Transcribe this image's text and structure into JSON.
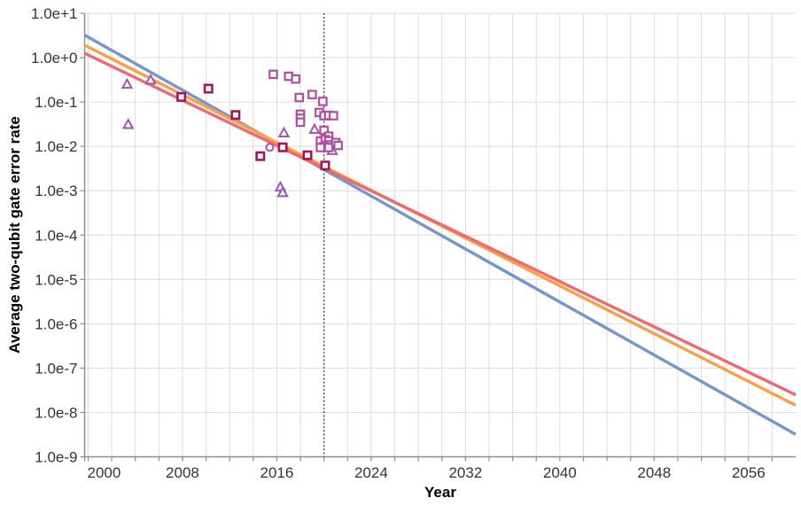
{
  "figure": {
    "xlabel": "Year",
    "ylabel": "Average two-qubit gate error rate"
  },
  "chart_data": {
    "type": "scatter",
    "title": "",
    "xlabel": "Year",
    "ylabel": "Average two-qubit gate error rate",
    "xlim": [
      1999.7,
      2060.0
    ],
    "ylim_exp": [
      -9,
      1
    ],
    "y_scale": "log10",
    "grid": true,
    "legend": "none",
    "x_minor_tick_step_years": 2,
    "x_ticks": [
      {
        "label": "2000",
        "year": 2000
      },
      {
        "label": "2008",
        "year": 2008
      },
      {
        "label": "2016",
        "year": 2016
      },
      {
        "label": "2024",
        "year": 2024
      },
      {
        "label": "2032",
        "year": 2032
      },
      {
        "label": "2040",
        "year": 2040
      },
      {
        "label": "2048",
        "year": 2048
      },
      {
        "label": "2056",
        "year": 2056
      }
    ],
    "y_ticks": [
      {
        "label": "1.0e+1",
        "exp": 1
      },
      {
        "label": "1.0e+0",
        "exp": 0
      },
      {
        "label": "1.0e-1",
        "exp": -1
      },
      {
        "label": "1.0e-2",
        "exp": -2
      },
      {
        "label": "1.0e-3",
        "exp": -3
      },
      {
        "label": "1.0e-4",
        "exp": -4
      },
      {
        "label": "1.0e-5",
        "exp": -5
      },
      {
        "label": "1.0e-6",
        "exp": -6
      },
      {
        "label": "1.0e-7",
        "exp": -7
      },
      {
        "label": "1.0e-8",
        "exp": -8
      },
      {
        "label": "1.0e-9",
        "exp": -9
      }
    ],
    "reference_line": {
      "year": 2020,
      "style": "dotted",
      "color": "#333333"
    },
    "colors": {
      "grid": "#dcdcdc",
      "axis": "#8c8c8c",
      "tick_text": "#333333",
      "background": "#ffffff"
    },
    "trend_lines": [
      {
        "name": "blue",
        "color": "#7596c8",
        "points": [
          {
            "year": 2000,
            "value": 2.9
          },
          {
            "year": 2060,
            "value": 3.2e-09
          }
        ]
      },
      {
        "name": "orange",
        "color": "#f7a24a",
        "points": [
          {
            "year": 2000,
            "value": 1.74
          },
          {
            "year": 2060,
            "value": 1.45e-08
          }
        ]
      },
      {
        "name": "red",
        "color": "#ec6a71",
        "points": [
          {
            "year": 2000,
            "value": 1.15
          },
          {
            "year": 2060,
            "value": 2.5e-08
          }
        ]
      }
    ],
    "scatter_series": [
      {
        "name": "triangle-markers",
        "marker": "triangle",
        "color": "#9e57b0",
        "points": [
          [
            2003.3,
            0.25
          ],
          [
            2005.3,
            0.31
          ],
          [
            2003.4,
            0.031
          ],
          [
            2016.6,
            0.02
          ],
          [
            2019.2,
            0.024
          ],
          [
            2020.7,
            0.008
          ],
          [
            2016.3,
            0.0012
          ],
          [
            2016.5,
            0.0009
          ]
        ]
      },
      {
        "name": "square-markers-light",
        "marker": "square",
        "color": "#ae4fa0",
        "points": [
          [
            2015.7,
            0.42
          ],
          [
            2017.0,
            0.38
          ],
          [
            2017.6,
            0.33
          ],
          [
            2017.9,
            0.126
          ],
          [
            2019.0,
            0.147
          ],
          [
            2019.9,
            0.103
          ],
          [
            2018.0,
            0.053
          ],
          [
            2018.0,
            0.043
          ],
          [
            2018.0,
            0.035
          ],
          [
            2019.6,
            0.058
          ],
          [
            2020.0,
            0.049
          ],
          [
            2020.4,
            0.05
          ],
          [
            2020.8,
            0.049
          ],
          [
            2020.0,
            0.023
          ],
          [
            2020.4,
            0.017
          ],
          [
            2019.7,
            0.0132
          ],
          [
            2020.1,
            0.0142
          ],
          [
            2020.4,
            0.0133
          ],
          [
            2020.3,
            0.0108
          ],
          [
            2020.0,
            0.0098
          ],
          [
            2019.7,
            0.0094
          ],
          [
            2020.4,
            0.0094
          ],
          [
            2021.0,
            0.0122
          ],
          [
            2021.2,
            0.0105
          ]
        ]
      },
      {
        "name": "square-markers-dark",
        "marker": "square",
        "color": "#a0175c",
        "points": [
          [
            2007.9,
            0.13
          ],
          [
            2010.2,
            0.2
          ],
          [
            2012.5,
            0.051
          ],
          [
            2014.6,
            0.006
          ],
          [
            2016.5,
            0.0095
          ],
          [
            2018.6,
            0.0063
          ],
          [
            2020.1,
            0.0037
          ]
        ]
      },
      {
        "name": "circle-markers",
        "marker": "circle",
        "color": "#b55aa8",
        "points": [
          [
            2015.4,
            0.0095
          ]
        ]
      }
    ]
  }
}
